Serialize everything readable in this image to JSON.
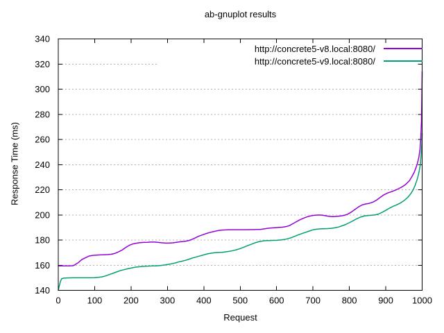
{
  "chart_data": {
    "type": "line",
    "title": "ab-gnuplot results",
    "xlabel": "Request",
    "ylabel": "Response Time (ms)",
    "xlim": [
      0,
      1000
    ],
    "ylim": [
      140,
      340
    ],
    "xticks": [
      0,
      100,
      200,
      300,
      400,
      500,
      600,
      700,
      800,
      900,
      1000
    ],
    "yticks": [
      140,
      160,
      180,
      200,
      220,
      240,
      260,
      280,
      300,
      320,
      340
    ],
    "grid": "horizontal-dotted",
    "grid_color": "#b0b0b0",
    "grid_gap_tick": 320,
    "legend_position": "top-right-inside",
    "border_color": "#000000",
    "series": [
      {
        "name": "http://concrete5-v8.local:8080/",
        "color": "#9400d3",
        "points": [
          [
            0,
            159.5
          ],
          [
            10,
            159.4
          ],
          [
            20,
            159.4
          ],
          [
            30,
            159.4
          ],
          [
            40,
            159.6
          ],
          [
            45,
            160.2
          ],
          [
            55,
            162
          ],
          [
            65,
            164.5
          ],
          [
            75,
            166
          ],
          [
            85,
            167.3
          ],
          [
            95,
            167.8
          ],
          [
            105,
            168
          ],
          [
            115,
            168.2
          ],
          [
            125,
            168.3
          ],
          [
            135,
            168.4
          ],
          [
            145,
            168.7
          ],
          [
            155,
            169.3
          ],
          [
            165,
            170.5
          ],
          [
            175,
            172
          ],
          [
            185,
            174
          ],
          [
            195,
            175.8
          ],
          [
            205,
            176.9
          ],
          [
            215,
            177.5
          ],
          [
            225,
            177.9
          ],
          [
            235,
            178.1
          ],
          [
            245,
            178.2
          ],
          [
            255,
            178.4
          ],
          [
            265,
            178.4
          ],
          [
            275,
            178.1
          ],
          [
            285,
            177.8
          ],
          [
            295,
            177.6
          ],
          [
            305,
            177.6
          ],
          [
            315,
            177.8
          ],
          [
            325,
            178.2
          ],
          [
            335,
            178.6
          ],
          [
            345,
            178.9
          ],
          [
            355,
            179.3
          ],
          [
            365,
            180.2
          ],
          [
            375,
            181.5
          ],
          [
            385,
            182.9
          ],
          [
            395,
            184
          ],
          [
            405,
            185
          ],
          [
            415,
            185.9
          ],
          [
            425,
            186.6
          ],
          [
            435,
            187.3
          ],
          [
            445,
            187.8
          ],
          [
            455,
            188
          ],
          [
            465,
            188.1
          ],
          [
            475,
            188.2
          ],
          [
            485,
            188.2
          ],
          [
            495,
            188.2
          ],
          [
            505,
            188.2
          ],
          [
            515,
            188.2
          ],
          [
            525,
            188.3
          ],
          [
            535,
            188.3
          ],
          [
            545,
            188.4
          ],
          [
            555,
            188.4
          ],
          [
            565,
            188.8
          ],
          [
            575,
            189.3
          ],
          [
            585,
            189.6
          ],
          [
            595,
            189.8
          ],
          [
            605,
            190
          ],
          [
            615,
            190.2
          ],
          [
            625,
            190.6
          ],
          [
            635,
            191.5
          ],
          [
            645,
            193
          ],
          [
            655,
            194.7
          ],
          [
            665,
            196.2
          ],
          [
            675,
            197.5
          ],
          [
            685,
            198.6
          ],
          [
            695,
            199.3
          ],
          [
            705,
            199.7
          ],
          [
            715,
            199.9
          ],
          [
            725,
            199.8
          ],
          [
            735,
            199.3
          ],
          [
            745,
            198.8
          ],
          [
            755,
            198.6
          ],
          [
            765,
            198.8
          ],
          [
            775,
            199.1
          ],
          [
            785,
            199.6
          ],
          [
            795,
            200.5
          ],
          [
            805,
            202.2
          ],
          [
            815,
            204.3
          ],
          [
            825,
            206.3
          ],
          [
            835,
            207.9
          ],
          [
            845,
            208.7
          ],
          [
            855,
            209.2
          ],
          [
            865,
            210.2
          ],
          [
            875,
            211.8
          ],
          [
            885,
            214
          ],
          [
            895,
            216
          ],
          [
            905,
            217.4
          ],
          [
            915,
            218.4
          ],
          [
            925,
            219.5
          ],
          [
            935,
            220.8
          ],
          [
            945,
            222.3
          ],
          [
            955,
            224.3
          ],
          [
            965,
            227.2
          ],
          [
            972,
            230.5
          ],
          [
            978,
            233.8
          ],
          [
            983,
            237.5
          ],
          [
            987,
            241
          ],
          [
            991,
            246
          ],
          [
            994,
            252
          ],
          [
            996,
            260
          ],
          [
            998,
            274
          ],
          [
            999,
            292
          ],
          [
            1000,
            314
          ]
        ]
      },
      {
        "name": "http://concrete5-v9.local:8080/",
        "color": "#009e73",
        "points": [
          [
            0,
            140
          ],
          [
            2,
            142.5
          ],
          [
            4,
            145
          ],
          [
            6,
            147
          ],
          [
            8,
            148.5
          ],
          [
            10,
            149.3
          ],
          [
            15,
            149.7
          ],
          [
            25,
            149.9
          ],
          [
            40,
            150
          ],
          [
            60,
            150
          ],
          [
            80,
            150
          ],
          [
            100,
            150.1
          ],
          [
            110,
            150.3
          ],
          [
            120,
            150.7
          ],
          [
            130,
            151.5
          ],
          [
            140,
            152.5
          ],
          [
            150,
            153.5
          ],
          [
            160,
            154.6
          ],
          [
            170,
            155.6
          ],
          [
            180,
            156.4
          ],
          [
            190,
            157.1
          ],
          [
            200,
            157.7
          ],
          [
            210,
            158.3
          ],
          [
            220,
            158.7
          ],
          [
            230,
            159
          ],
          [
            240,
            159.2
          ],
          [
            250,
            159.3
          ],
          [
            260,
            159.4
          ],
          [
            270,
            159.5
          ],
          [
            280,
            159.7
          ],
          [
            290,
            160.1
          ],
          [
            300,
            160.5
          ],
          [
            310,
            161
          ],
          [
            320,
            161.7
          ],
          [
            330,
            162.5
          ],
          [
            340,
            163.2
          ],
          [
            350,
            163.9
          ],
          [
            360,
            164.8
          ],
          [
            370,
            165.8
          ],
          [
            380,
            166.6
          ],
          [
            390,
            167.4
          ],
          [
            400,
            168.2
          ],
          [
            410,
            169
          ],
          [
            420,
            169.5
          ],
          [
            430,
            169.9
          ],
          [
            440,
            170.1
          ],
          [
            450,
            170.2
          ],
          [
            460,
            170.6
          ],
          [
            470,
            171
          ],
          [
            480,
            171.6
          ],
          [
            490,
            172.3
          ],
          [
            500,
            173.2
          ],
          [
            510,
            174.3
          ],
          [
            520,
            175.5
          ],
          [
            530,
            176.6
          ],
          [
            540,
            177.7
          ],
          [
            550,
            178.6
          ],
          [
            560,
            179.2
          ],
          [
            570,
            179.5
          ],
          [
            580,
            179.6
          ],
          [
            590,
            179.7
          ],
          [
            600,
            179.8
          ],
          [
            610,
            180
          ],
          [
            620,
            180.4
          ],
          [
            630,
            181
          ],
          [
            640,
            181.8
          ],
          [
            650,
            183
          ],
          [
            660,
            184.2
          ],
          [
            670,
            185.2
          ],
          [
            680,
            186.2
          ],
          [
            690,
            187.2
          ],
          [
            700,
            188.1
          ],
          [
            710,
            188.6
          ],
          [
            720,
            188.9
          ],
          [
            730,
            189
          ],
          [
            740,
            189.1
          ],
          [
            750,
            189.3
          ],
          [
            760,
            189.7
          ],
          [
            770,
            190.3
          ],
          [
            780,
            191.3
          ],
          [
            790,
            192.4
          ],
          [
            800,
            193.8
          ],
          [
            810,
            195.3
          ],
          [
            820,
            196.9
          ],
          [
            830,
            198.2
          ],
          [
            840,
            199.1
          ],
          [
            850,
            199.5
          ],
          [
            860,
            199.7
          ],
          [
            870,
            199.9
          ],
          [
            880,
            200.7
          ],
          [
            890,
            202
          ],
          [
            900,
            203.6
          ],
          [
            910,
            205.3
          ],
          [
            920,
            206.8
          ],
          [
            930,
            208
          ],
          [
            940,
            209.4
          ],
          [
            950,
            211.3
          ],
          [
            960,
            213.8
          ],
          [
            968,
            216.5
          ],
          [
            975,
            219.8
          ],
          [
            980,
            223
          ],
          [
            985,
            227
          ],
          [
            989,
            231
          ],
          [
            992,
            235
          ],
          [
            995,
            240
          ],
          [
            997,
            247
          ],
          [
            999,
            256
          ],
          [
            1000,
            265
          ]
        ]
      }
    ]
  }
}
